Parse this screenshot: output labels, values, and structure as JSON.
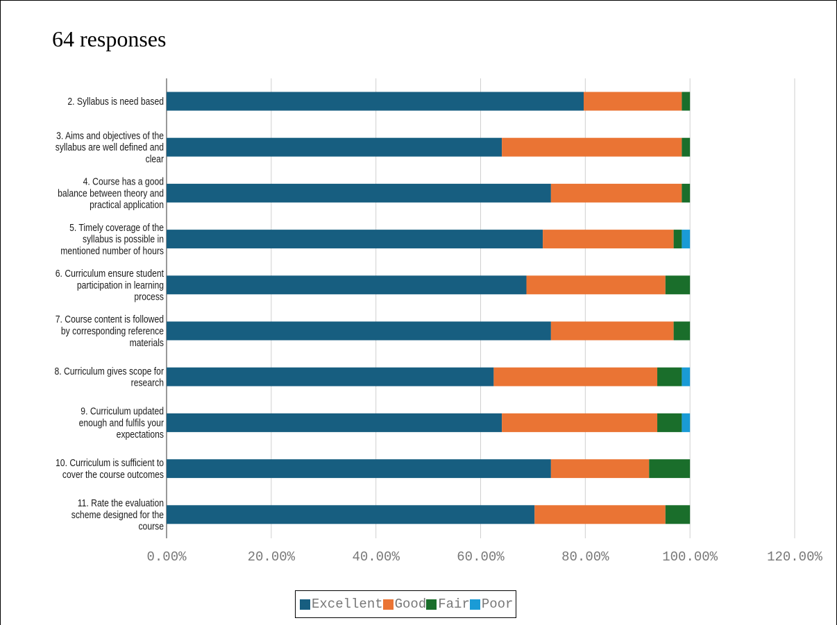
{
  "heading": "64 responses",
  "chart_data": {
    "type": "bar",
    "orientation": "horizontal",
    "stacked": true,
    "categories": [
      [
        "2. Syllabus is need based"
      ],
      [
        "3. Aims and objectives of the",
        "syllabus are well defined and",
        "clear"
      ],
      [
        "4. Course  has a good",
        "balance between theory and",
        "practical application"
      ],
      [
        "5. Timely coverage of the",
        "syllabus is possible in",
        "mentioned number of hours"
      ],
      [
        "6. Curriculum ensure student",
        "participation in learning",
        "process"
      ],
      [
        "7. Course content is followed",
        "by corresponding reference",
        "materials"
      ],
      [
        "8. Curriculum gives scope for",
        "research"
      ],
      [
        "9. Curriculum updated",
        "enough and fulfils your",
        "expectations"
      ],
      [
        "10. Curriculum is sufficient to",
        "cover the course outcomes"
      ],
      [
        "11. Rate the evaluation",
        "scheme designed for the",
        "course"
      ]
    ],
    "series": [
      {
        "name": "Excellent",
        "color": "#175e80",
        "values": [
          79.69,
          64.06,
          73.44,
          71.88,
          68.75,
          73.44,
          62.5,
          64.06,
          73.44,
          70.31
        ]
      },
      {
        "name": "Good",
        "color": "#ea7434",
        "values": [
          18.75,
          34.38,
          25.0,
          25.0,
          26.56,
          23.44,
          31.25,
          29.69,
          18.75,
          25.0
        ]
      },
      {
        "name": "Fair",
        "color": "#1a6e2b",
        "values": [
          1.56,
          1.56,
          1.56,
          1.56,
          4.69,
          3.12,
          4.69,
          4.69,
          7.81,
          4.69
        ]
      },
      {
        "name": "Poor",
        "color": "#1a9bd6",
        "values": [
          0,
          0,
          0,
          1.56,
          0,
          0,
          1.56,
          1.56,
          0,
          0
        ]
      }
    ],
    "x_ticks": [
      "0.00%",
      "20.00%",
      "40.00%",
      "60.00%",
      "80.00%",
      "100.00%",
      "120.00%"
    ],
    "xlim": [
      0,
      120
    ],
    "grid": true,
    "legend_position": "bottom"
  }
}
